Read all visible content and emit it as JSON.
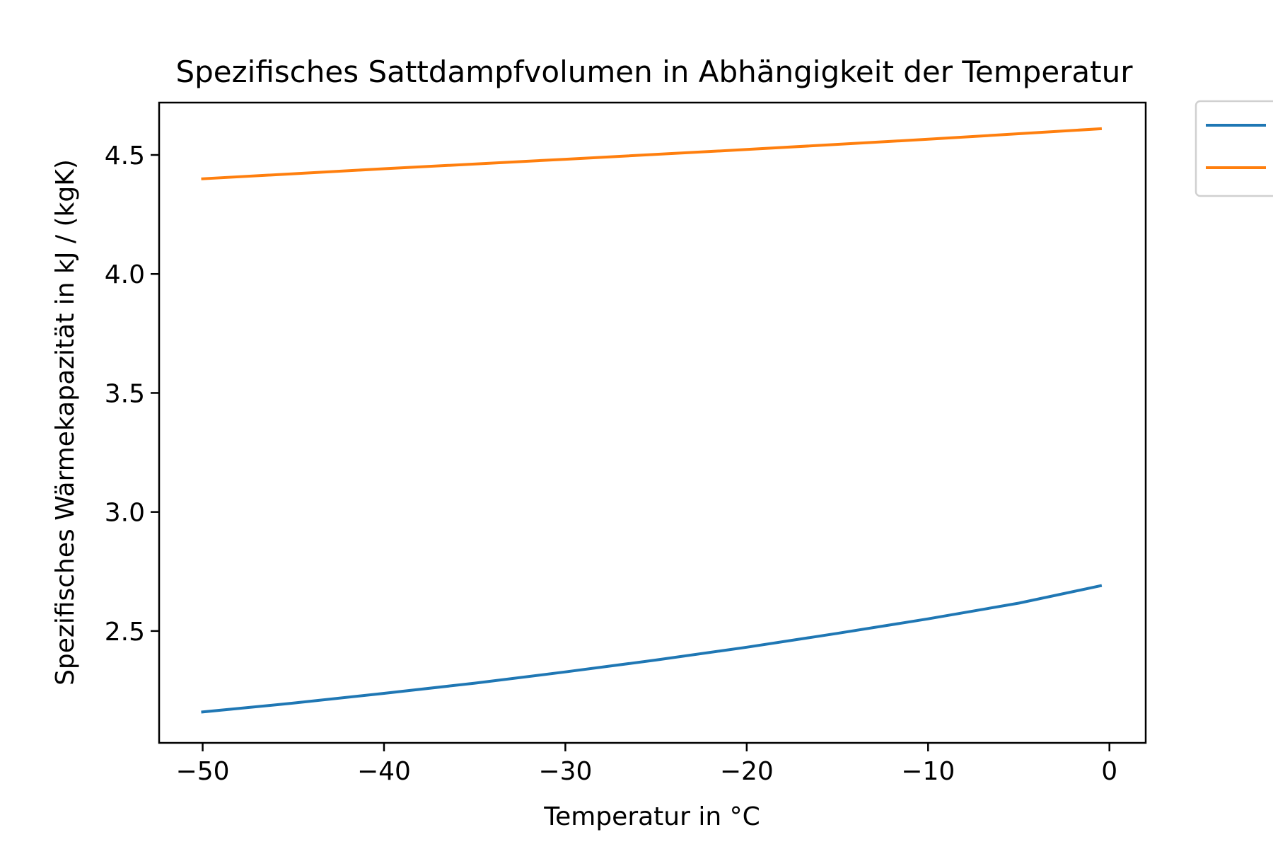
{
  "chart_data": {
    "type": "line",
    "title": "Spezifisches Sattdampfvolumen in Abhängigkeit der Temperatur",
    "xlabel": "Temperatur in °C",
    "ylabel": "Spezifisches Wärmekapazität in kJ / (kgK)",
    "xlim": [
      -52.4,
      2
    ],
    "ylim": [
      2.03,
      4.72
    ],
    "x_ticks": [
      -50,
      -40,
      -30,
      -20,
      -10,
      0
    ],
    "x_tick_labels": [
      "−50",
      "−40",
      "−30",
      "−20",
      "−10",
      "0"
    ],
    "y_ticks": [
      2.5,
      3.0,
      3.5,
      4.0,
      4.5
    ],
    "y_tick_labels": [
      "2.5",
      "3.0",
      "3.5",
      "4.0",
      "4.5"
    ],
    "grid": false,
    "legend_position": "outside top-right (partially cut off)",
    "series": [
      {
        "color": "#1f77b4",
        "x": [
          -50,
          -45,
          -40,
          -35,
          -30,
          -25,
          -20,
          -15,
          -10,
          -5,
          -0.5
        ],
        "values": [
          2.16,
          2.197,
          2.238,
          2.281,
          2.328,
          2.378,
          2.432,
          2.49,
          2.551,
          2.617,
          2.69
        ]
      },
      {
        "color": "#ff7f0e",
        "x": [
          -50,
          -40,
          -30,
          -20,
          -10,
          -0.5
        ],
        "values": [
          4.4,
          4.442,
          4.482,
          4.523,
          4.566,
          4.61
        ]
      }
    ]
  }
}
